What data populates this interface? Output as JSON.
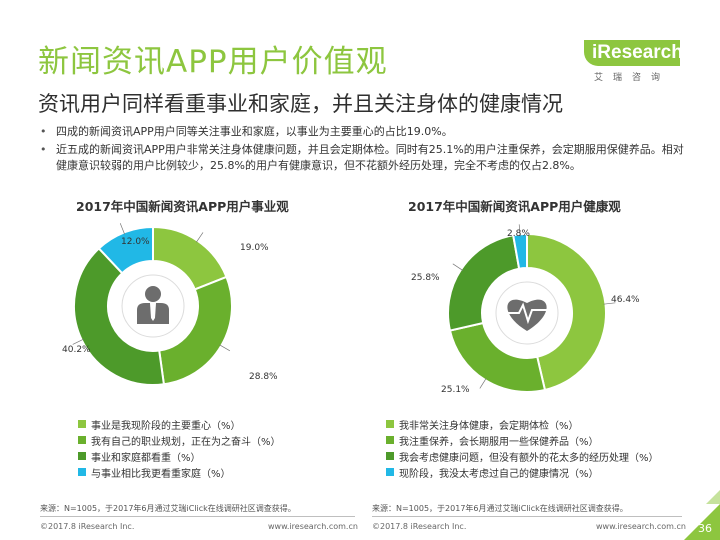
{
  "header": {
    "title": "新闻资讯APP用户价值观",
    "subtitle": "资讯用户同样看重事业和家庭，并且关注身体的健康情况"
  },
  "logo": {
    "brand": "iResearch",
    "sub": "艾瑞咨询"
  },
  "bullets": [
    "四成的新闻资讯APP用户同等关注事业和家庭，以事业为主要重心的占比19.0%。",
    "近五成的新闻资讯APP用户非常关注身体健康问题，并且会定期体检。同时有25.1%的用户注重保养，会定期服用保健养品。相对健康意识较弱的用户比例较少，25.8%的用户有健康意识，但不花额外经历处理，完全不考虑的仅占2.8%。"
  ],
  "colors": {
    "accent": "#8dc63f",
    "c1": "#8dc63f",
    "c2": "#6ab02d",
    "c3": "#4d9a2a",
    "c4": "#21b8e6"
  },
  "chart_data": [
    {
      "type": "pie",
      "title": "2017年中国新闻资讯APP用户事业观",
      "center_icon": "businessman-icon",
      "labels": [
        "事业是我现阶段的主要重心（%）",
        "我有自己的职业规划，正在为之奋斗（%）",
        "事业和家庭都看重（%）",
        "与事业相比我更看重家庭（%）"
      ],
      "values": [
        19.0,
        28.8,
        40.2,
        12.0
      ],
      "value_labels": [
        "19.0%",
        "28.8%",
        "40.2%",
        "12.0%"
      ],
      "colors": [
        "#8dc63f",
        "#6ab02d",
        "#4d9a2a",
        "#21b8e6"
      ]
    },
    {
      "type": "pie",
      "title": "2017年中国新闻资讯APP用户健康观",
      "center_icon": "heart-pulse-icon",
      "labels": [
        "我非常关注身体健康，会定期体检（%）",
        "我注重保养，会长期服用一些保健养品（%）",
        "我会考虑健康问题，但没有额外的花太多的经历处理（%）",
        "现阶段，我没太考虑过自己的健康情况（%）"
      ],
      "values": [
        46.4,
        25.1,
        25.8,
        2.8
      ],
      "value_labels": [
        "46.4%",
        "25.1%",
        "25.8%",
        "2.8%"
      ],
      "colors": [
        "#8dc63f",
        "#6ab02d",
        "#4d9a2a",
        "#21b8e6"
      ]
    }
  ],
  "footer": {
    "source": "来源：N=1005，于2017年6月通过艾瑞iClick在线调研社区调查获得。",
    "copyright": "©2017.8 iResearch Inc.",
    "website": "www.iresearch.com.cn",
    "page": "36"
  }
}
